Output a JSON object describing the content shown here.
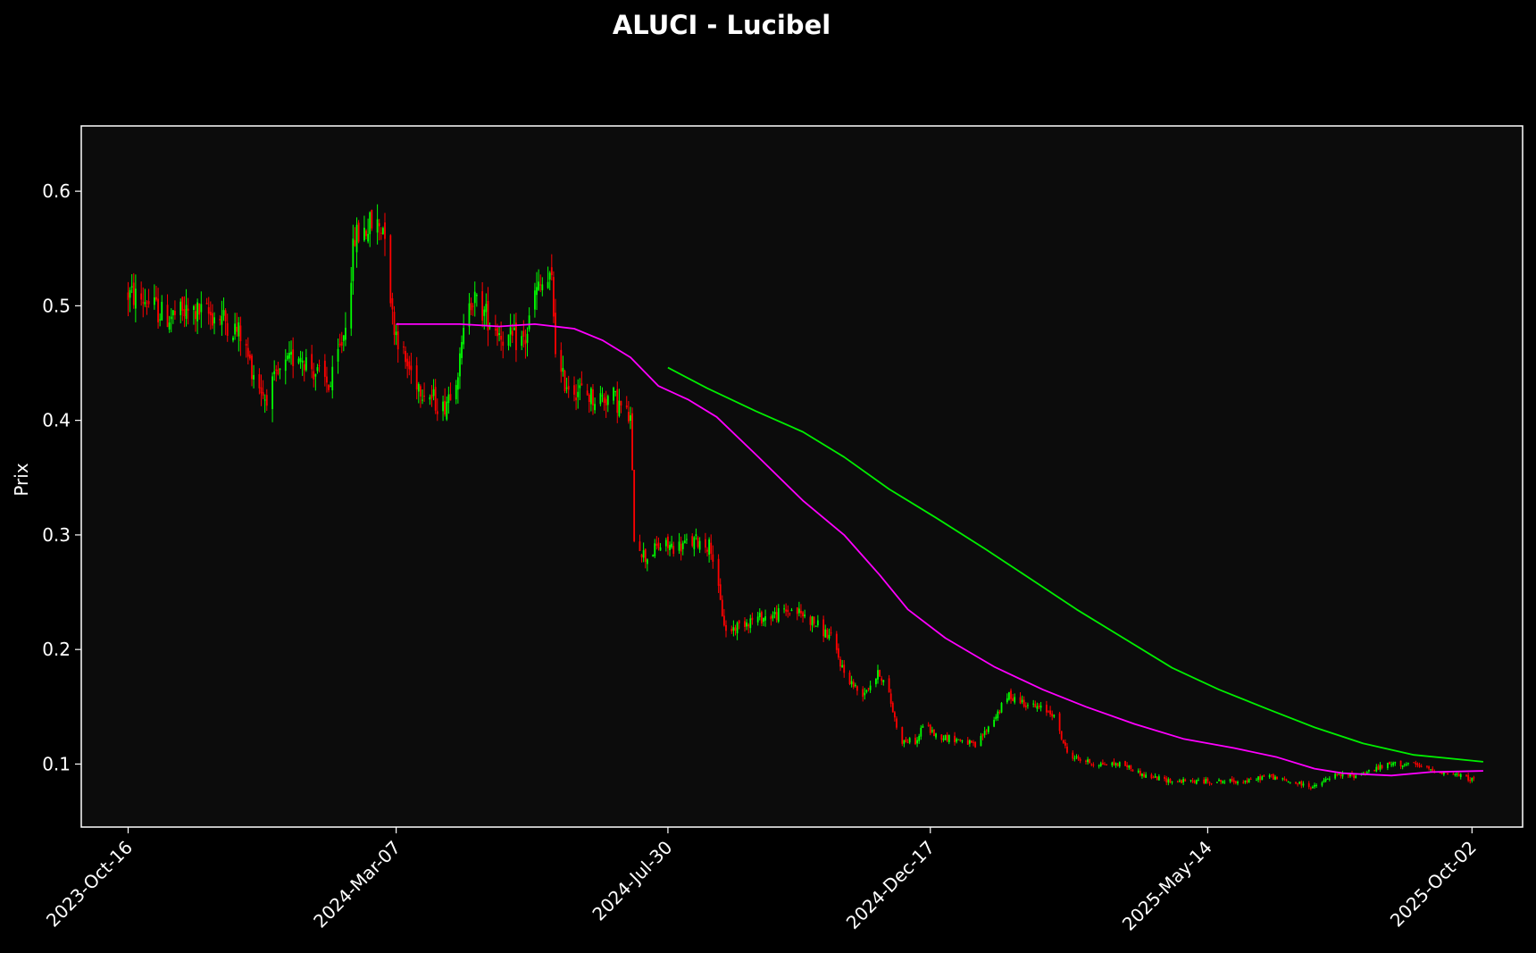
{
  "chart_data": {
    "type": "candlestick",
    "title": "ALUCI - Lucibel",
    "xlabel": "",
    "ylabel": "Prix",
    "ylim": [
      0.045,
      0.657
    ],
    "xlim": [
      "2023-09-21",
      "2025-10-29"
    ],
    "x_ticks": [
      "2023-Oct-16",
      "2024-Mar-07",
      "2024-Jul-30",
      "2024-Dec-17",
      "2025-May-14",
      "2025-Oct-02"
    ],
    "y_ticks": [
      0.1,
      0.2,
      0.3,
      0.4,
      0.5,
      0.6
    ],
    "grid": false,
    "legend": "none",
    "colors": {
      "background": "#000000",
      "plot_background": "#0c0c0c",
      "frame": "#ffffff",
      "up_candle": "#00ff00",
      "down_candle": "#ff0000",
      "ma_magenta": "#ff00ff",
      "ma_green": "#00ee00"
    },
    "price_path": [
      [
        "2023-10-16",
        0.51
      ],
      [
        "2023-10-25",
        0.505
      ],
      [
        "2023-11-05",
        0.49
      ],
      [
        "2023-11-20",
        0.495
      ],
      [
        "2023-12-05",
        0.49
      ],
      [
        "2023-12-15",
        0.475
      ],
      [
        "2023-12-20",
        0.45
      ],
      [
        "2023-12-28",
        0.42
      ],
      [
        "2024-01-05",
        0.44
      ],
      [
        "2024-01-15",
        0.46
      ],
      [
        "2024-01-25",
        0.44
      ],
      [
        "2024-02-01",
        0.43
      ],
      [
        "2024-02-08",
        0.475
      ],
      [
        "2024-02-14",
        0.56
      ],
      [
        "2024-02-22",
        0.57
      ],
      [
        "2024-03-01",
        0.57
      ],
      [
        "2024-03-05",
        0.49
      ],
      [
        "2024-03-12",
        0.45
      ],
      [
        "2024-03-20",
        0.43
      ],
      [
        "2024-04-01",
        0.41
      ],
      [
        "2024-04-10",
        0.45
      ],
      [
        "2024-04-15",
        0.51
      ],
      [
        "2024-04-25",
        0.49
      ],
      [
        "2024-05-05",
        0.47
      ],
      [
        "2024-05-15",
        0.47
      ],
      [
        "2024-05-20",
        0.51
      ],
      [
        "2024-05-25",
        0.52
      ],
      [
        "2024-05-29",
        0.52
      ],
      [
        "2024-06-01",
        0.44
      ],
      [
        "2024-06-08",
        0.43
      ],
      [
        "2024-06-20",
        0.42
      ],
      [
        "2024-07-01",
        0.42
      ],
      [
        "2024-07-10",
        0.4
      ],
      [
        "2024-07-12",
        0.3
      ],
      [
        "2024-07-18",
        0.28
      ],
      [
        "2024-07-25",
        0.29
      ],
      [
        "2024-08-05",
        0.29
      ],
      [
        "2024-08-15",
        0.295
      ],
      [
        "2024-08-22",
        0.29
      ],
      [
        "2024-08-27",
        0.24
      ],
      [
        "2024-08-30",
        0.215
      ],
      [
        "2024-09-10",
        0.225
      ],
      [
        "2024-09-25",
        0.23
      ],
      [
        "2024-10-05",
        0.235
      ],
      [
        "2024-10-15",
        0.225
      ],
      [
        "2024-10-25",
        0.21
      ],
      [
        "2024-11-01",
        0.18
      ],
      [
        "2024-11-10",
        0.16
      ],
      [
        "2024-11-20",
        0.18
      ],
      [
        "2024-11-25",
        0.16
      ],
      [
        "2024-12-01",
        0.12
      ],
      [
        "2024-12-10",
        0.12
      ],
      [
        "2024-12-13",
        0.135
      ],
      [
        "2024-12-20",
        0.125
      ],
      [
        "2025-01-05",
        0.12
      ],
      [
        "2025-01-10",
        0.115
      ],
      [
        "2025-01-18",
        0.135
      ],
      [
        "2025-01-28",
        0.16
      ],
      [
        "2025-02-10",
        0.15
      ],
      [
        "2025-02-20",
        0.145
      ],
      [
        "2025-02-28",
        0.11
      ],
      [
        "2025-03-05",
        0.105
      ],
      [
        "2025-03-15",
        0.1
      ],
      [
        "2025-03-30",
        0.1
      ],
      [
        "2025-04-10",
        0.09
      ],
      [
        "2025-04-25",
        0.085
      ],
      [
        "2025-05-14",
        0.085
      ],
      [
        "2025-05-25",
        0.085
      ],
      [
        "2025-06-05",
        0.085
      ],
      [
        "2025-06-15",
        0.09
      ],
      [
        "2025-06-25",
        0.085
      ],
      [
        "2025-07-10",
        0.08
      ],
      [
        "2025-07-20",
        0.09
      ],
      [
        "2025-08-01",
        0.09
      ],
      [
        "2025-08-10",
        0.095
      ],
      [
        "2025-08-20",
        0.1
      ],
      [
        "2025-08-30",
        0.1
      ],
      [
        "2025-09-10",
        0.095
      ],
      [
        "2025-09-25",
        0.09
      ],
      [
        "2025-10-05",
        0.085
      ]
    ],
    "series": [
      {
        "color": "#ff00ff",
        "points": [
          [
            "2024-03-07",
            0.484
          ],
          [
            "2024-04-10",
            0.484
          ],
          [
            "2024-05-01",
            0.482
          ],
          [
            "2024-05-20",
            0.484
          ],
          [
            "2024-06-10",
            0.48
          ],
          [
            "2024-06-25",
            0.47
          ],
          [
            "2024-07-10",
            0.455
          ],
          [
            "2024-07-25",
            0.43
          ],
          [
            "2024-08-10",
            0.418
          ],
          [
            "2024-08-25",
            0.403
          ],
          [
            "2024-09-15",
            0.37
          ],
          [
            "2024-10-10",
            0.33
          ],
          [
            "2024-11-01",
            0.3
          ],
          [
            "2024-11-20",
            0.265
          ],
          [
            "2024-12-05",
            0.235
          ],
          [
            "2024-12-25",
            0.21
          ],
          [
            "2025-01-20",
            0.185
          ],
          [
            "2025-02-15",
            0.165
          ],
          [
            "2025-03-10",
            0.15
          ],
          [
            "2025-04-05",
            0.135
          ],
          [
            "2025-05-01",
            0.122
          ],
          [
            "2025-05-28",
            0.114
          ],
          [
            "2025-06-20",
            0.106
          ],
          [
            "2025-07-10",
            0.096
          ],
          [
            "2025-07-25",
            0.092
          ],
          [
            "2025-08-20",
            0.09
          ],
          [
            "2025-09-10",
            0.093
          ],
          [
            "2025-10-08",
            0.094
          ]
        ]
      },
      {
        "color": "#00ee00",
        "points": [
          [
            "2024-07-30",
            0.446
          ],
          [
            "2024-08-20",
            0.428
          ],
          [
            "2024-09-15",
            0.408
          ],
          [
            "2024-10-10",
            0.39
          ],
          [
            "2024-11-01",
            0.368
          ],
          [
            "2024-11-25",
            0.34
          ],
          [
            "2024-12-20",
            0.315
          ],
          [
            "2025-01-15",
            0.288
          ],
          [
            "2025-02-10",
            0.26
          ],
          [
            "2025-03-05",
            0.235
          ],
          [
            "2025-04-01",
            0.208
          ],
          [
            "2025-04-25",
            0.184
          ],
          [
            "2025-05-20",
            0.165
          ],
          [
            "2025-06-15",
            0.148
          ],
          [
            "2025-07-10",
            0.132
          ],
          [
            "2025-08-05",
            0.118
          ],
          [
            "2025-09-01",
            0.108
          ],
          [
            "2025-10-08",
            0.102
          ]
        ]
      }
    ]
  }
}
